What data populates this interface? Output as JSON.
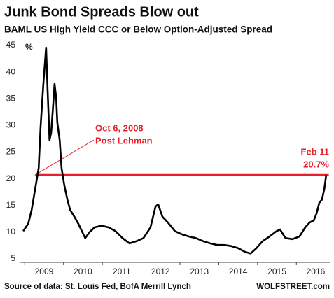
{
  "chart_data": {
    "type": "line",
    "title": "Junk Bond Spreads Blow out",
    "subtitle": "BAML US High Yield CCC or Below Option-Adjusted Spread",
    "y_unit": "%",
    "source": "Source of data: St. Louis Fed, BofA Merrill Lynch",
    "credit": "WOLFSTREET.com",
    "x": [
      2008.46,
      2008.59,
      2008.68,
      2008.77,
      2008.86,
      2008.91,
      2008.98,
      2009.05,
      2009.09,
      2009.14,
      2009.18,
      2009.22,
      2009.27,
      2009.31,
      2009.34,
      2009.4,
      2009.45,
      2009.52,
      2009.6,
      2009.67,
      2009.78,
      2009.88,
      2009.99,
      2010.06,
      2010.17,
      2010.3,
      2010.48,
      2010.66,
      2010.84,
      2011.02,
      2011.2,
      2011.38,
      2011.56,
      2011.74,
      2011.87,
      2011.94,
      2012.05,
      2012.19,
      2012.37,
      2012.55,
      2012.73,
      2012.91,
      2013.1,
      2013.28,
      2013.46,
      2013.64,
      2013.82,
      2014.0,
      2014.18,
      2014.32,
      2014.47,
      2014.63,
      2014.81,
      2014.99,
      2015.08,
      2015.22,
      2015.4,
      2015.58,
      2015.73,
      2015.84,
      2015.95,
      2016.02,
      2016.09,
      2016.16,
      2016.22,
      2016.27
    ],
    "series": [
      {
        "name": "CCC or Below OAS",
        "color": "#000000",
        "values": [
          10.2,
          11.6,
          14.2,
          18.1,
          22.0,
          29.9,
          37.8,
          44.6,
          36.5,
          27.3,
          28.6,
          32.5,
          37.8,
          35.2,
          30.6,
          27.3,
          22.0,
          18.8,
          16.1,
          14.2,
          12.9,
          11.6,
          9.9,
          8.9,
          10.0,
          10.9,
          11.2,
          10.9,
          10.2,
          8.9,
          7.9,
          8.3,
          8.9,
          10.9,
          14.8,
          15.2,
          12.9,
          11.8,
          10.2,
          9.6,
          9.2,
          8.9,
          8.3,
          7.9,
          7.6,
          7.6,
          7.4,
          7.0,
          6.3,
          6.0,
          7.0,
          8.3,
          9.2,
          10.2,
          10.5,
          8.9,
          8.7,
          9.2,
          10.9,
          11.8,
          12.2,
          13.5,
          15.5,
          16.1,
          18.1,
          20.7
        ]
      }
    ],
    "xlim": [
      2008.45,
      2016.3
    ],
    "xticks": [
      2009,
      2010,
      2011,
      2012,
      2013,
      2014,
      2015,
      2016
    ],
    "ylim": [
      5,
      45
    ],
    "yticks": [
      5,
      10,
      15,
      20,
      25,
      30,
      35,
      40,
      45
    ],
    "reference_line": {
      "value": 20.7,
      "label": "20.7%",
      "date": "Feb 11",
      "color": "#e8202a"
    },
    "callout": {
      "lines": [
        "Oct 6, 2008",
        "Post Lehman"
      ],
      "x": 2008.76,
      "color": "#e8202a"
    }
  }
}
